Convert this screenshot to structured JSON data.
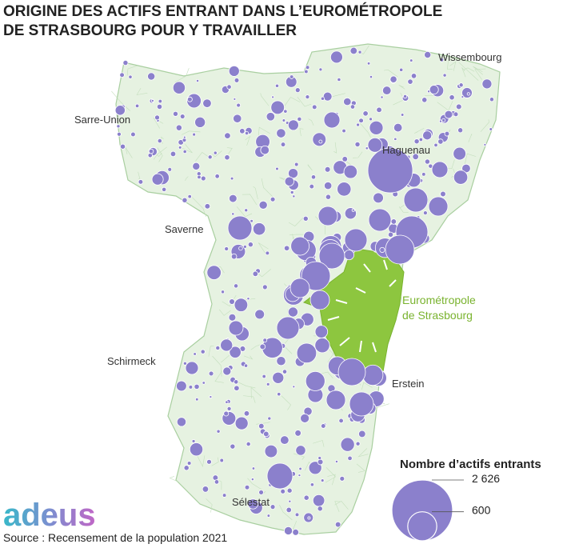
{
  "title": [
    "ORIGINE DES ACTIFS ENTRANT DANS L’EUROMÉTROPOLE",
    "DE STRASBOURG POUR Y TRAVAILLER"
  ],
  "places": [
    "Wissembourg",
    "Sarre-Union",
    "Haguenau",
    "Saverne",
    "Schirmeck",
    "Erstein",
    "Sélestat"
  ],
  "eurometropole": [
    "Eurométropole",
    "de Strasbourg"
  ],
  "legend": {
    "title": "Nombre d’actifs entrants",
    "sizes": [
      {
        "value": 2626,
        "label": "2 626"
      },
      600
    ]
  },
  "logo": "adeus",
  "source": "Source : Recensement de la population 2021"
}
